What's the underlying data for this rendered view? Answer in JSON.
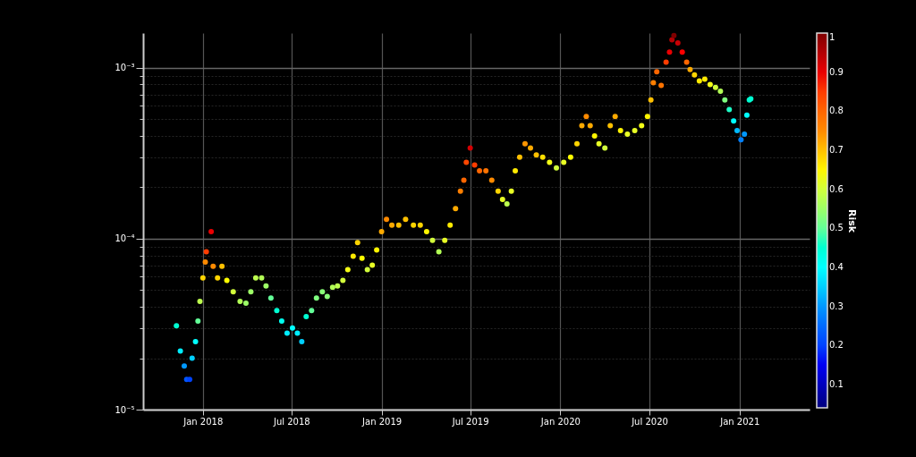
{
  "chart_data": {
    "type": "scatter",
    "clabel": "Risk",
    "marker": "circle",
    "grid": true,
    "xlim": [
      "2017-09-01",
      "2021-05-24"
    ],
    "xticks": [
      {
        "value": "2018-01-01",
        "label": "Jan 2018"
      },
      {
        "value": "2018-07-01",
        "label": "Jul 2018"
      },
      {
        "value": "2019-01-01",
        "label": "Jan 2019"
      },
      {
        "value": "2019-07-01",
        "label": "Jul 2019"
      },
      {
        "value": "2020-01-01",
        "label": "Jan 2020"
      },
      {
        "value": "2020-07-01",
        "label": "Jul 2020"
      },
      {
        "value": "2021-01-01",
        "label": "Jan 2021"
      }
    ],
    "ylim": [
      1e-05,
      0.0016
    ],
    "log": true,
    "yticks": [
      {
        "value": 1e-05,
        "label": "10⁻⁵"
      },
      {
        "value": 2e-05,
        "label": null
      },
      {
        "value": 3e-05,
        "label": null
      },
      {
        "value": 4e-05,
        "label": null
      },
      {
        "value": 5e-05,
        "label": null
      },
      {
        "value": 6e-05,
        "label": null
      },
      {
        "value": 7e-05,
        "label": null
      },
      {
        "value": 8e-05,
        "label": null
      },
      {
        "value": 9e-05,
        "label": null
      },
      {
        "value": 0.0001,
        "label": "10⁻⁴"
      },
      {
        "value": 0.0002,
        "label": null
      },
      {
        "value": 0.0003,
        "label": null
      },
      {
        "value": 0.0004,
        "label": null
      },
      {
        "value": 0.0005,
        "label": null
      },
      {
        "value": 0.0006,
        "label": null
      },
      {
        "value": 0.0007,
        "label": null
      },
      {
        "value": 0.0008,
        "label": null
      },
      {
        "value": 0.0009,
        "label": null
      },
      {
        "value": 0.001,
        "label": "10⁻³"
      }
    ],
    "clim": [
      0.04,
      1
    ],
    "cticks": [
      0.1,
      0.2,
      0.3,
      0.4,
      0.5,
      0.6,
      0.7,
      0.8,
      0.9,
      1
    ],
    "x": [
      "2017-11-08",
      "2017-11-16",
      "2017-11-24",
      "2017-11-29",
      "2017-12-05",
      "2017-12-10",
      "2017-12-17",
      "2017-12-22",
      "2017-12-26",
      "2018-01-01",
      "2018-01-06",
      "2018-01-08",
      "2018-01-18",
      "2018-01-22",
      "2018-01-31",
      "2018-02-09",
      "2018-02-19",
      "2018-03-04",
      "2018-03-18",
      "2018-03-30",
      "2018-04-09",
      "2018-04-19",
      "2018-05-01",
      "2018-05-10",
      "2018-05-20",
      "2018-06-01",
      "2018-06-11",
      "2018-06-22",
      "2018-07-03",
      "2018-07-13",
      "2018-07-22",
      "2018-07-31",
      "2018-08-11",
      "2018-08-21",
      "2018-09-02",
      "2018-09-12",
      "2018-09-23",
      "2018-10-03",
      "2018-10-14",
      "2018-10-24",
      "2018-11-04",
      "2018-11-13",
      "2018-11-22",
      "2018-12-03",
      "2018-12-13",
      "2018-12-22",
      "2019-01-01",
      "2019-01-11",
      "2019-01-22",
      "2019-02-05",
      "2019-02-19",
      "2019-03-07",
      "2019-03-21",
      "2019-04-03",
      "2019-04-15",
      "2019-04-28",
      "2019-05-10",
      "2019-05-21",
      "2019-06-01",
      "2019-06-11",
      "2019-06-18",
      "2019-06-23",
      "2019-07-01",
      "2019-07-10",
      "2019-07-20",
      "2019-08-02",
      "2019-08-14",
      "2019-08-27",
      "2019-09-05",
      "2019-09-14",
      "2019-09-23",
      "2019-10-01",
      "2019-10-10",
      "2019-10-21",
      "2019-11-01",
      "2019-11-13",
      "2019-11-26",
      "2019-12-10",
      "2019-12-24",
      "2020-01-08",
      "2020-01-22",
      "2020-02-04",
      "2020-02-14",
      "2020-02-23",
      "2020-03-02",
      "2020-03-11",
      "2020-03-20",
      "2020-04-01",
      "2020-04-12",
      "2020-04-22",
      "2020-05-03",
      "2020-05-17",
      "2020-06-01",
      "2020-06-15",
      "2020-06-27",
      "2020-07-04",
      "2020-07-09",
      "2020-07-16",
      "2020-07-25",
      "2020-08-04",
      "2020-08-11",
      "2020-08-16",
      "2020-08-20",
      "2020-08-28",
      "2020-09-06",
      "2020-09-15",
      "2020-09-22",
      "2020-10-01",
      "2020-10-11",
      "2020-10-22",
      "2020-11-02",
      "2020-11-13",
      "2020-11-23",
      "2020-12-02",
      "2020-12-11",
      "2020-12-20",
      "2020-12-27",
      "2021-01-04",
      "2021-01-11",
      "2021-01-16",
      "2021-01-21",
      "2021-01-24"
    ],
    "values": [
      3.1e-05,
      2.2e-05,
      1.8e-05,
      1.5e-05,
      1.5e-05,
      2e-05,
      2.5e-05,
      3.3e-05,
      4.3e-05,
      5.9e-05,
      7.3e-05,
      8.4e-05,
      0.00011,
      6.9e-05,
      5.9e-05,
      6.9e-05,
      5.7e-05,
      4.9e-05,
      4.3e-05,
      4.2e-05,
      4.9e-05,
      5.9e-05,
      5.9e-05,
      5.3e-05,
      4.5e-05,
      3.8e-05,
      3.3e-05,
      2.8e-05,
      3e-05,
      2.8e-05,
      2.5e-05,
      3.5e-05,
      3.8e-05,
      4.5e-05,
      4.9e-05,
      4.6e-05,
      5.2e-05,
      5.3e-05,
      5.7e-05,
      6.6e-05,
      7.9e-05,
      9.5e-05,
      7.7e-05,
      6.6e-05,
      7e-05,
      8.6e-05,
      0.00011,
      0.00013,
      0.00012,
      0.00012,
      0.00013,
      0.00012,
      0.00012,
      0.00011,
      9.8e-05,
      8.4e-05,
      9.8e-05,
      0.00012,
      0.00015,
      0.00019,
      0.00022,
      0.00028,
      0.00034,
      0.00027,
      0.00025,
      0.00025,
      0.00022,
      0.00019,
      0.00017,
      0.00016,
      0.00019,
      0.00025,
      0.0003,
      0.00036,
      0.00034,
      0.00031,
      0.0003,
      0.00028,
      0.00026,
      0.00028,
      0.0003,
      0.00036,
      0.00046,
      0.00052,
      0.00046,
      0.0004,
      0.00036,
      0.00034,
      0.00046,
      0.00052,
      0.00043,
      0.00041,
      0.00043,
      0.00046,
      0.00052,
      0.00065,
      0.00082,
      0.00095,
      0.00079,
      0.00108,
      0.00124,
      0.00146,
      0.00155,
      0.0014,
      0.00124,
      0.00108,
      0.00098,
      0.00091,
      0.00084,
      0.00086,
      0.0008,
      0.00077,
      0.00073,
      0.00065,
      0.00057,
      0.00049,
      0.00043,
      0.00038,
      0.00041,
      0.00053,
      0.00065,
      0.00066
    ],
    "cvalues": [
      0.45,
      0.38,
      0.3,
      0.22,
      0.2,
      0.35,
      0.4,
      0.5,
      0.58,
      0.68,
      0.75,
      0.85,
      0.9,
      0.75,
      0.68,
      0.7,
      0.64,
      0.6,
      0.57,
      0.55,
      0.55,
      0.58,
      0.57,
      0.55,
      0.5,
      0.45,
      0.42,
      0.38,
      0.4,
      0.38,
      0.35,
      0.45,
      0.5,
      0.52,
      0.53,
      0.53,
      0.57,
      0.58,
      0.6,
      0.63,
      0.66,
      0.68,
      0.64,
      0.6,
      0.62,
      0.65,
      0.72,
      0.75,
      0.72,
      0.7,
      0.7,
      0.68,
      0.68,
      0.65,
      0.6,
      0.57,
      0.62,
      0.66,
      0.72,
      0.76,
      0.8,
      0.84,
      0.92,
      0.85,
      0.8,
      0.78,
      0.75,
      0.68,
      0.62,
      0.58,
      0.62,
      0.66,
      0.7,
      0.74,
      0.72,
      0.7,
      0.67,
      0.63,
      0.6,
      0.62,
      0.64,
      0.68,
      0.72,
      0.75,
      0.72,
      0.65,
      0.62,
      0.6,
      0.7,
      0.72,
      0.65,
      0.62,
      0.62,
      0.63,
      0.65,
      0.7,
      0.76,
      0.8,
      0.78,
      0.85,
      0.9,
      0.95,
      1.0,
      0.93,
      0.88,
      0.8,
      0.72,
      0.68,
      0.66,
      0.66,
      0.63,
      0.6,
      0.57,
      0.52,
      0.46,
      0.4,
      0.33,
      0.28,
      0.3,
      0.4,
      0.45,
      0.45
    ]
  }
}
